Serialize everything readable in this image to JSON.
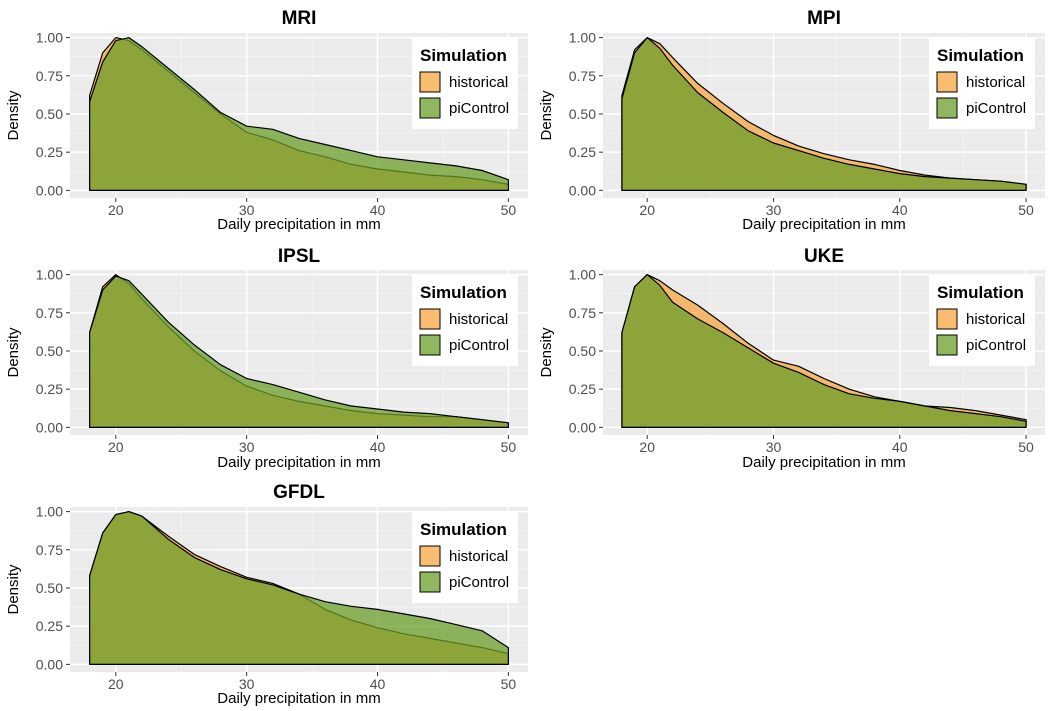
{
  "chart_data": [
    {
      "type": "area",
      "title": "MRI",
      "xlabel": "Daily precipitation in mm",
      "ylabel": "Density",
      "xlim": [
        16.5,
        51.5
      ],
      "ylim": [
        -0.05,
        1.03
      ],
      "x_ticks": [
        "20",
        "30",
        "40",
        "50"
      ],
      "y_ticks": [
        "0.00",
        "0.25",
        "0.50",
        "0.75",
        "1.00"
      ],
      "legend": {
        "title": "Simulation",
        "position": "top-right",
        "items": [
          "historical",
          "piControl"
        ]
      },
      "series": [
        {
          "name": "historical",
          "color": "#F5A742",
          "x": [
            18,
            19,
            20,
            21,
            22,
            24,
            26,
            28,
            30,
            32,
            34,
            36,
            38,
            40,
            42,
            44,
            46,
            48,
            50
          ],
          "y": [
            0.62,
            0.9,
            1.0,
            0.98,
            0.92,
            0.78,
            0.64,
            0.5,
            0.38,
            0.33,
            0.26,
            0.22,
            0.17,
            0.14,
            0.12,
            0.1,
            0.09,
            0.07,
            0.04
          ]
        },
        {
          "name": "piControl",
          "color": "#6B9E2A",
          "x": [
            18,
            19,
            20,
            21,
            22,
            24,
            26,
            28,
            30,
            32,
            34,
            36,
            38,
            40,
            42,
            44,
            46,
            48,
            50
          ],
          "y": [
            0.58,
            0.84,
            0.98,
            1.0,
            0.94,
            0.8,
            0.66,
            0.51,
            0.42,
            0.4,
            0.34,
            0.3,
            0.26,
            0.22,
            0.2,
            0.18,
            0.16,
            0.13,
            0.07
          ]
        }
      ]
    },
    {
      "type": "area",
      "title": "MPI",
      "xlabel": "Daily precipitation in mm",
      "ylabel": "Density",
      "xlim": [
        16.5,
        51.5
      ],
      "ylim": [
        -0.05,
        1.03
      ],
      "x_ticks": [
        "20",
        "30",
        "40",
        "50"
      ],
      "y_ticks": [
        "0.00",
        "0.25",
        "0.50",
        "0.75",
        "1.00"
      ],
      "legend": {
        "title": "Simulation",
        "position": "top-right",
        "items": [
          "historical",
          "piControl"
        ]
      },
      "series": [
        {
          "name": "historical",
          "color": "#F5A742",
          "x": [
            18,
            19,
            20,
            21,
            22,
            24,
            26,
            28,
            30,
            32,
            34,
            36,
            38,
            40,
            42,
            44,
            46,
            48,
            50
          ],
          "y": [
            0.62,
            0.92,
            1.0,
            0.96,
            0.87,
            0.7,
            0.57,
            0.45,
            0.36,
            0.29,
            0.24,
            0.2,
            0.17,
            0.13,
            0.1,
            0.08,
            0.07,
            0.06,
            0.04
          ]
        },
        {
          "name": "piControl",
          "color": "#6B9E2A",
          "x": [
            18,
            19,
            20,
            21,
            22,
            24,
            26,
            28,
            30,
            32,
            34,
            36,
            38,
            40,
            42,
            44,
            46,
            48,
            50
          ],
          "y": [
            0.6,
            0.9,
            1.0,
            0.93,
            0.82,
            0.64,
            0.51,
            0.39,
            0.31,
            0.26,
            0.21,
            0.17,
            0.14,
            0.11,
            0.09,
            0.08,
            0.07,
            0.06,
            0.04
          ]
        }
      ]
    },
    {
      "type": "area",
      "title": "IPSL",
      "xlabel": "Daily precipitation in mm",
      "ylabel": "Density",
      "xlim": [
        16.5,
        51.5
      ],
      "ylim": [
        -0.05,
        1.03
      ],
      "x_ticks": [
        "20",
        "30",
        "40",
        "50"
      ],
      "y_ticks": [
        "0.00",
        "0.25",
        "0.50",
        "0.75",
        "1.00"
      ],
      "legend": {
        "title": "Simulation",
        "position": "top-right",
        "items": [
          "historical",
          "piControl"
        ]
      },
      "series": [
        {
          "name": "historical",
          "color": "#F5A742",
          "x": [
            18,
            19,
            20,
            21,
            22,
            24,
            26,
            28,
            30,
            32,
            34,
            36,
            38,
            40,
            42,
            44,
            46,
            48,
            50
          ],
          "y": [
            0.62,
            0.92,
            1.0,
            0.94,
            0.84,
            0.66,
            0.5,
            0.37,
            0.27,
            0.21,
            0.17,
            0.14,
            0.11,
            0.09,
            0.08,
            0.07,
            0.07,
            0.05,
            0.03
          ]
        },
        {
          "name": "piControl",
          "color": "#6B9E2A",
          "x": [
            18,
            19,
            20,
            21,
            22,
            24,
            26,
            28,
            30,
            32,
            34,
            36,
            38,
            40,
            42,
            44,
            46,
            48,
            50
          ],
          "y": [
            0.62,
            0.9,
            0.99,
            0.96,
            0.87,
            0.69,
            0.54,
            0.41,
            0.32,
            0.28,
            0.23,
            0.18,
            0.14,
            0.12,
            0.1,
            0.09,
            0.07,
            0.05,
            0.03
          ]
        }
      ]
    },
    {
      "type": "area",
      "title": "UKE",
      "xlabel": "Daily precipitation in mm",
      "ylabel": "Density",
      "xlim": [
        16.5,
        51.5
      ],
      "ylim": [
        -0.05,
        1.03
      ],
      "x_ticks": [
        "20",
        "30",
        "40",
        "50"
      ],
      "y_ticks": [
        "0.00",
        "0.25",
        "0.50",
        "0.75",
        "1.00"
      ],
      "legend": {
        "title": "Simulation",
        "position": "top-right",
        "items": [
          "historical",
          "piControl"
        ]
      },
      "series": [
        {
          "name": "historical",
          "color": "#F5A742",
          "x": [
            18,
            19,
            20,
            21,
            22,
            24,
            26,
            28,
            30,
            32,
            34,
            36,
            38,
            40,
            42,
            44,
            46,
            48,
            50
          ],
          "y": [
            0.62,
            0.92,
            1.0,
            0.96,
            0.9,
            0.8,
            0.68,
            0.55,
            0.44,
            0.4,
            0.32,
            0.25,
            0.2,
            0.17,
            0.14,
            0.13,
            0.11,
            0.08,
            0.05
          ]
        },
        {
          "name": "piControl",
          "color": "#6B9E2A",
          "x": [
            18,
            19,
            20,
            21,
            22,
            24,
            26,
            28,
            30,
            32,
            34,
            36,
            38,
            40,
            42,
            44,
            46,
            48,
            50
          ],
          "y": [
            0.62,
            0.92,
            1.0,
            0.93,
            0.82,
            0.71,
            0.62,
            0.52,
            0.42,
            0.36,
            0.28,
            0.22,
            0.19,
            0.17,
            0.14,
            0.11,
            0.09,
            0.07,
            0.04
          ]
        }
      ]
    },
    {
      "type": "area",
      "title": "GFDL",
      "xlabel": "Daily precipitation in mm",
      "ylabel": "Density",
      "xlim": [
        16.5,
        51.5
      ],
      "ylim": [
        -0.05,
        1.03
      ],
      "x_ticks": [
        "20",
        "30",
        "40",
        "50"
      ],
      "y_ticks": [
        "0.00",
        "0.25",
        "0.50",
        "0.75",
        "1.00"
      ],
      "legend": {
        "title": "Simulation",
        "position": "top-right",
        "items": [
          "historical",
          "piControl"
        ]
      },
      "series": [
        {
          "name": "historical",
          "color": "#F5A742",
          "x": [
            18,
            19,
            20,
            21,
            22,
            24,
            26,
            28,
            30,
            32,
            34,
            36,
            38,
            40,
            42,
            44,
            46,
            48,
            50
          ],
          "y": [
            0.58,
            0.86,
            0.98,
            1.0,
            0.97,
            0.84,
            0.72,
            0.64,
            0.57,
            0.53,
            0.46,
            0.36,
            0.29,
            0.24,
            0.2,
            0.17,
            0.14,
            0.11,
            0.07
          ]
        },
        {
          "name": "piControl",
          "color": "#6B9E2A",
          "x": [
            18,
            19,
            20,
            21,
            22,
            24,
            26,
            28,
            30,
            32,
            34,
            36,
            38,
            40,
            42,
            44,
            46,
            48,
            50
          ],
          "y": [
            0.58,
            0.86,
            0.98,
            1.0,
            0.97,
            0.82,
            0.7,
            0.62,
            0.56,
            0.52,
            0.46,
            0.41,
            0.38,
            0.36,
            0.33,
            0.3,
            0.26,
            0.22,
            0.11
          ]
        }
      ]
    }
  ]
}
